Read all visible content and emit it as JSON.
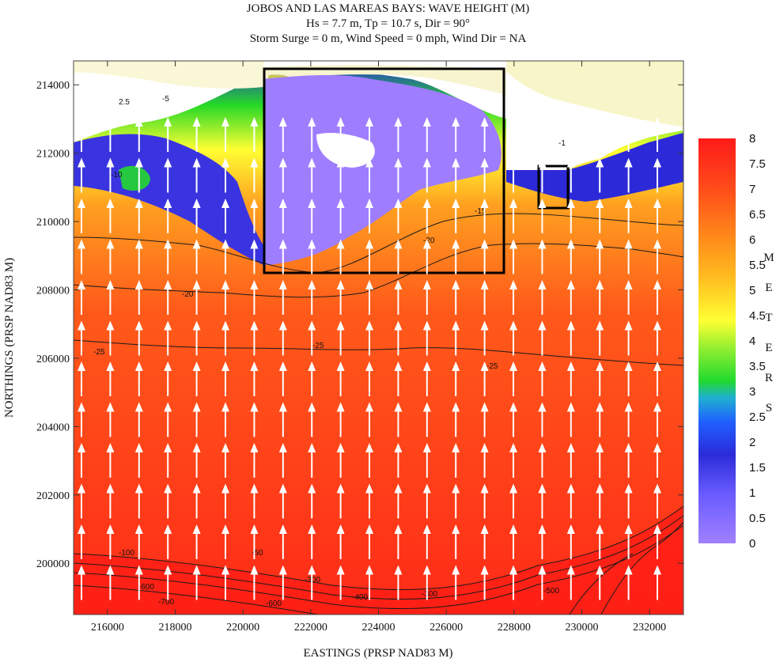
{
  "chart_data": {
    "type": "heatmap",
    "title": "JOBOS AND LAS MAREAS BAYS: WAVE HEIGHT (M)",
    "subtitle_1": "Hs = 7.7 m, Tp = 10.7 s, Dir = 90°",
    "subtitle_2": "Storm Surge = 0 m, Wind Speed = 0 mph, Wind Dir = NA",
    "xlabel": "EASTINGS (PRSP NAD83 M)",
    "ylabel": "NORTHINGS (PRSP NAD83 M)",
    "xlim": [
      215000,
      233000
    ],
    "ylim": [
      198500,
      214700
    ],
    "x_ticks": [
      216000,
      218000,
      220000,
      222000,
      224000,
      226000,
      228000,
      230000,
      232000
    ],
    "y_ticks": [
      200000,
      202000,
      204000,
      206000,
      208000,
      210000,
      212000,
      214000
    ],
    "colorbar": {
      "ticks": [
        "8",
        "7.5",
        "7",
        "6.5",
        "6",
        "5.5",
        "5",
        "4.5",
        "4",
        "3.5",
        "3",
        "2.5",
        "2",
        "1.5",
        "1",
        "0.5",
        "0"
      ],
      "min": 0,
      "max": 8,
      "unit_letters": [
        "M",
        "E",
        "T",
        "E",
        "R",
        "S"
      ],
      "colors": [
        "#9f7dff",
        "#2b2bd9",
        "#26d926",
        "#ffff33",
        "#ff8c1a",
        "#ff1a1a"
      ]
    },
    "contour_labels": [
      "2.5",
      "-5",
      "-10",
      "-15",
      "-20",
      "-25",
      "-50",
      "-100",
      "-300",
      "-400",
      "-500",
      "-600",
      "-700",
      "-1"
    ],
    "boxes": [
      {
        "x0": 220700,
        "x1": 227700,
        "y0": 208500,
        "y1": 214500
      },
      {
        "x0": 228700,
        "x1": 229600,
        "y0": 210400,
        "y1": 211600
      }
    ],
    "vectors": {
      "direction": "north",
      "color": "#ffffff"
    }
  }
}
